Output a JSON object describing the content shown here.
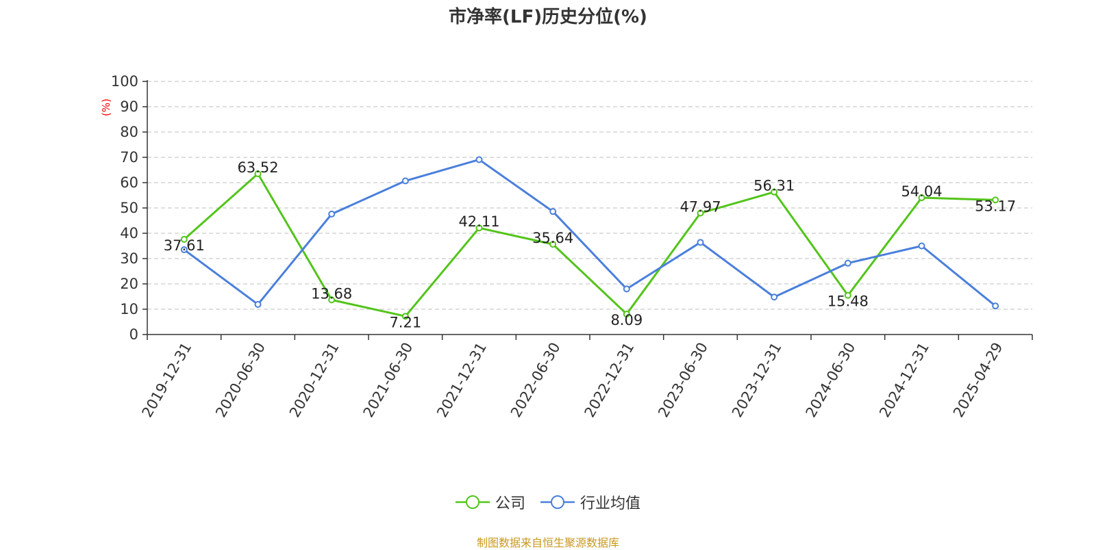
{
  "chart_data": {
    "type": "line",
    "title": "市净率(LF)历史分位(%)",
    "ylabel": "(%)",
    "xlabel": "",
    "ylim": [
      0,
      100
    ],
    "yticks": [
      0,
      10,
      20,
      30,
      40,
      50,
      60,
      70,
      80,
      90,
      100
    ],
    "grid": true,
    "legend_position": "bottom",
    "categories": [
      "2019-12-31",
      "2020-06-30",
      "2020-12-31",
      "2021-06-30",
      "2021-12-31",
      "2022-06-30",
      "2022-12-31",
      "2023-06-30",
      "2023-12-31",
      "2024-06-30",
      "2024-12-31",
      "2025-04-29"
    ],
    "series": [
      {
        "name": "公司",
        "color": "#52c41a",
        "show_labels": true,
        "values": [
          37.61,
          63.52,
          13.68,
          7.21,
          42.11,
          35.64,
          8.09,
          47.97,
          56.31,
          15.48,
          54.04,
          53.17
        ]
      },
      {
        "name": "行业均值",
        "color": "#4a7fdc",
        "show_labels": false,
        "values": [
          33.5,
          11.9,
          47.6,
          60.7,
          69.1,
          48.6,
          18.0,
          36.4,
          14.8,
          28.2,
          35.0,
          11.3
        ]
      }
    ]
  },
  "footer": {
    "source": "制图数据来自恒生聚源数据库",
    "source_color": "#c9981e"
  },
  "colors": {
    "axis": "#333333",
    "grid": "#cccccc",
    "ylabel": "#ff0000"
  }
}
